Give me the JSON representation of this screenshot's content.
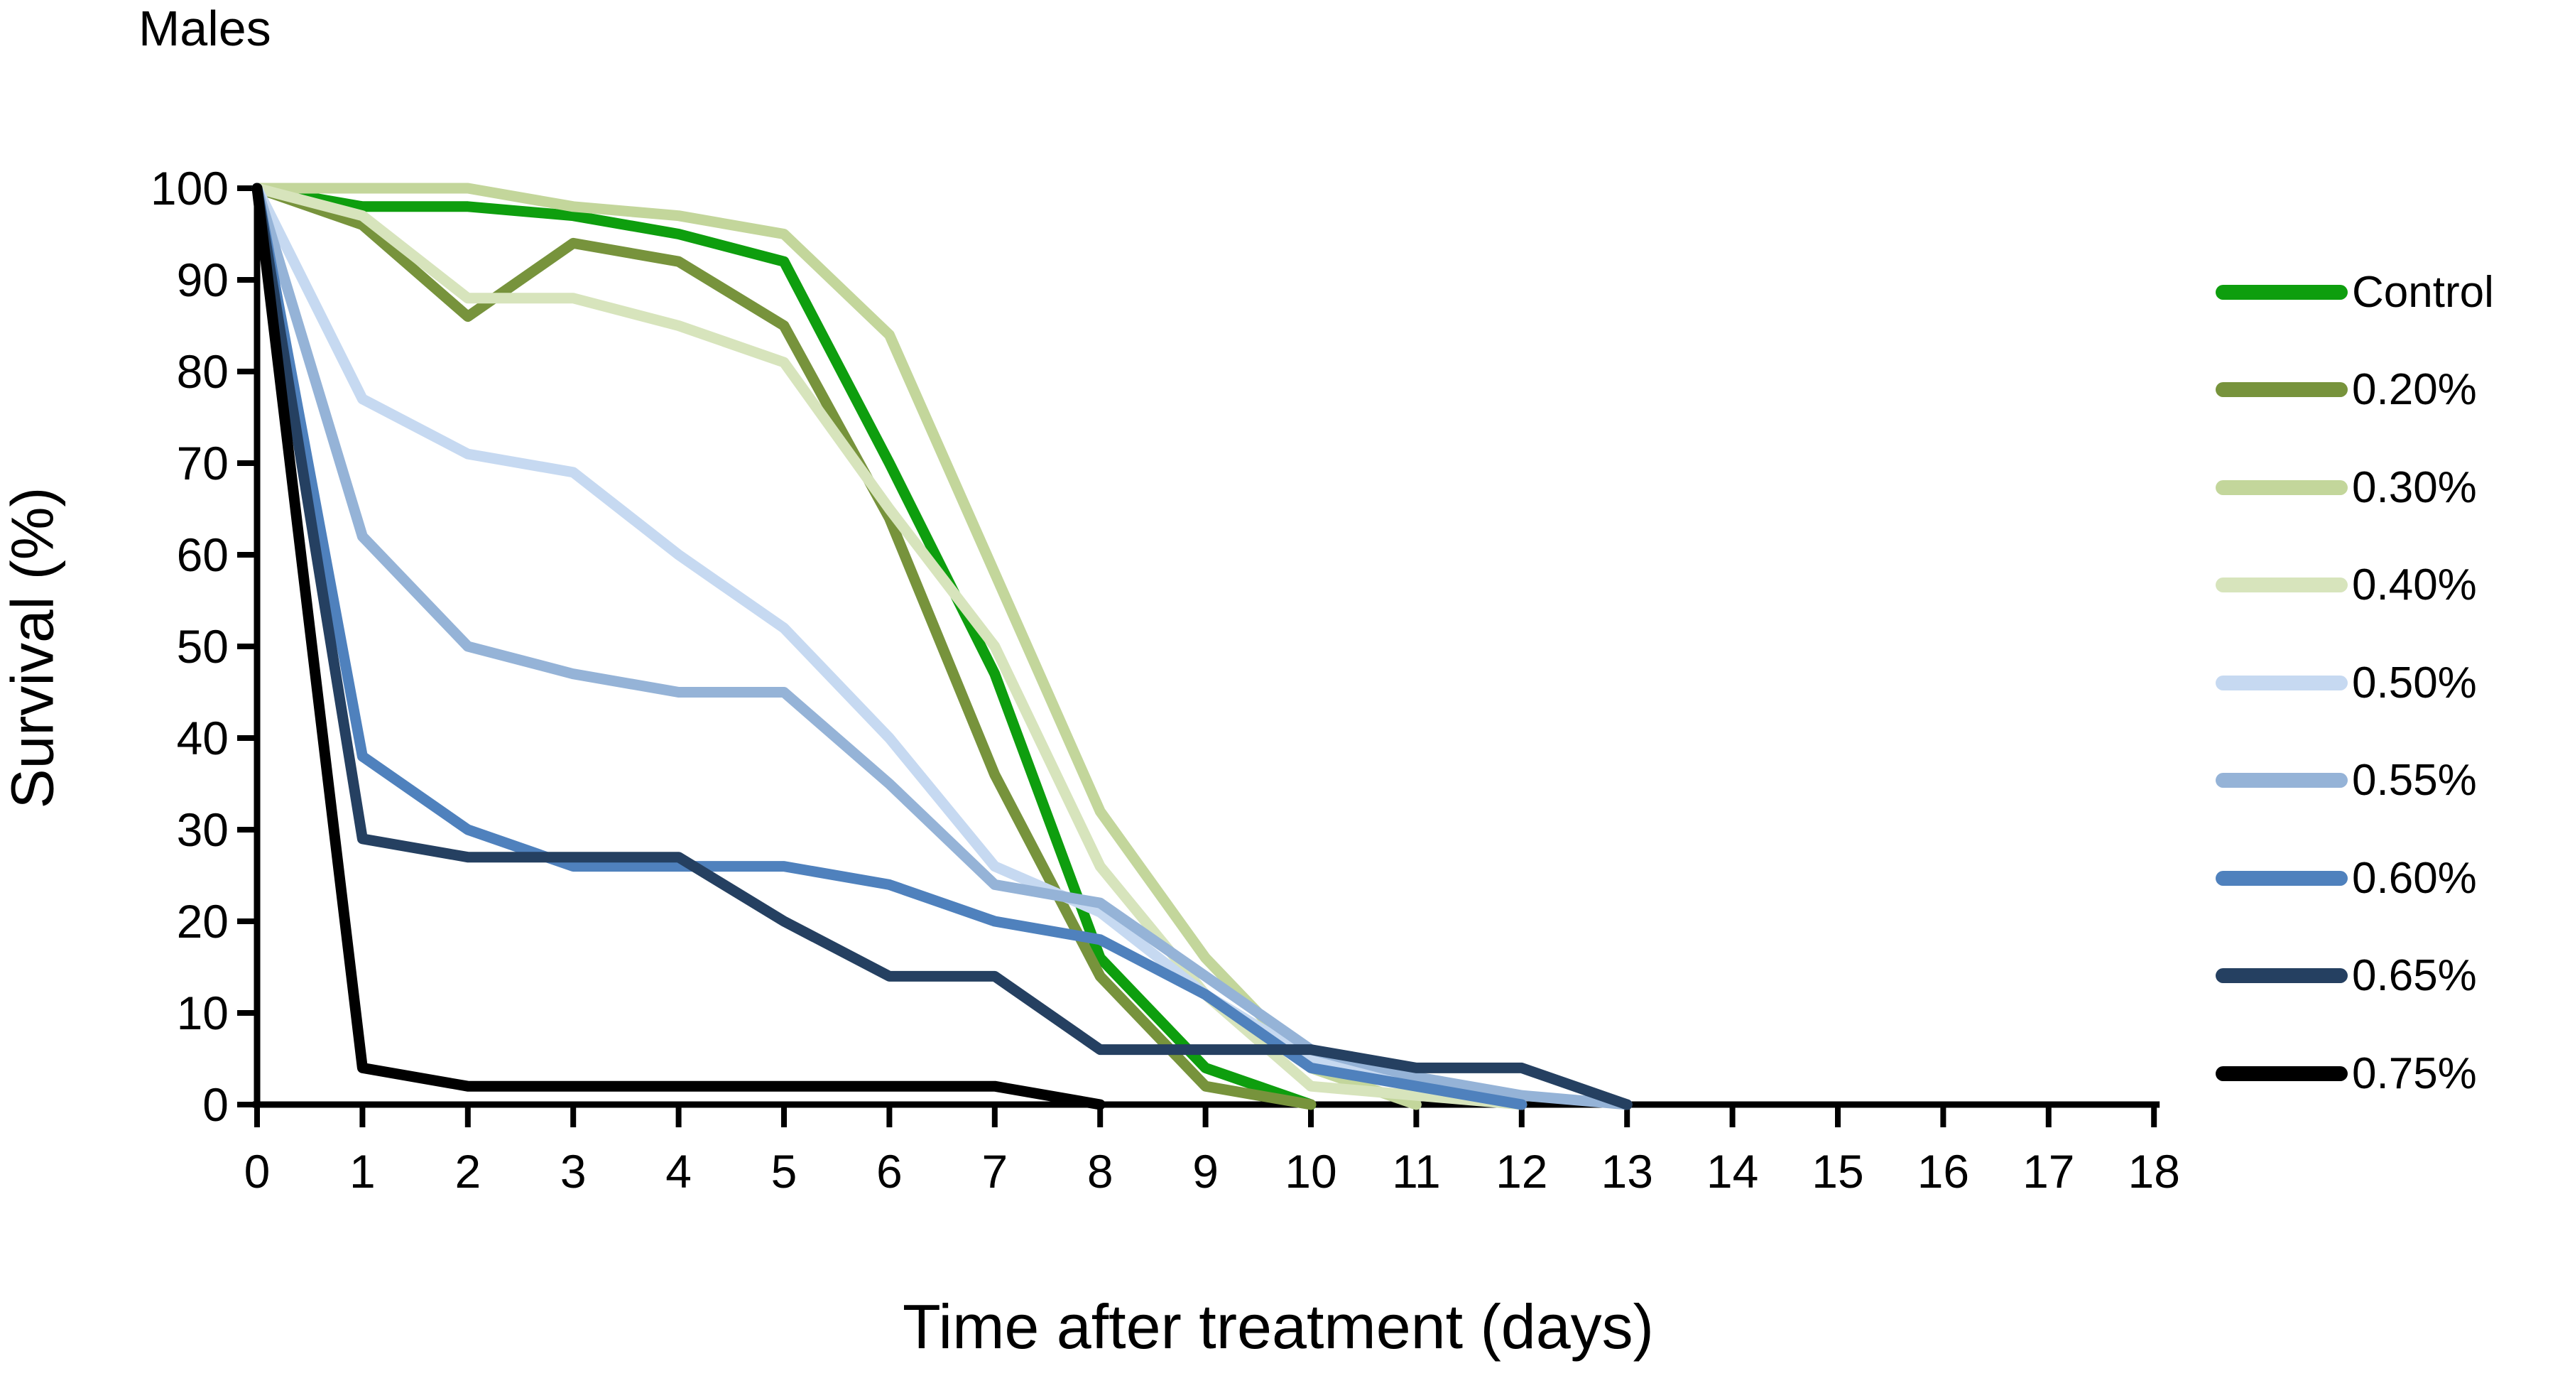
{
  "chart_data": {
    "type": "line",
    "title": "Males",
    "xlabel": "Time after treatment (days)",
    "ylabel": "Survival (%)",
    "xlim": [
      0,
      18
    ],
    "ylim": [
      0,
      100
    ],
    "xticks": [
      0,
      1,
      2,
      3,
      4,
      5,
      6,
      7,
      8,
      9,
      10,
      11,
      12,
      13,
      14,
      15,
      16,
      17,
      18
    ],
    "yticks": [
      0,
      10,
      20,
      30,
      40,
      50,
      60,
      70,
      80,
      90,
      100
    ],
    "grid": false,
    "legend_position": "right",
    "axis_color": "#000000",
    "background_color": "#ffffff",
    "series": [
      {
        "name": "Control",
        "color": "#0E9E0E",
        "x": [
          0,
          1,
          2,
          3,
          4,
          5,
          6,
          7,
          8,
          9,
          10
        ],
        "values": [
          100,
          98,
          98,
          97,
          95,
          92,
          70,
          47,
          16,
          4,
          0
        ]
      },
      {
        "name": "0.20%",
        "color": "#77933C",
        "x": [
          0,
          1,
          2,
          3,
          4,
          5,
          6,
          7,
          8,
          9,
          10
        ],
        "values": [
          100,
          96,
          86,
          94,
          92,
          85,
          64,
          36,
          14,
          2,
          0
        ]
      },
      {
        "name": "0.30%",
        "color": "#C3D69B",
        "x": [
          0,
          1,
          2,
          3,
          4,
          5,
          6,
          7,
          8,
          9,
          10,
          11
        ],
        "values": [
          100,
          100,
          100,
          98,
          97,
          95,
          84,
          58,
          32,
          16,
          4,
          0
        ]
      },
      {
        "name": "0.40%",
        "color": "#D7E4BC",
        "x": [
          0,
          1,
          2,
          3,
          4,
          5,
          6,
          7,
          8,
          9,
          10,
          11,
          12
        ],
        "values": [
          100,
          97,
          88,
          88,
          85,
          81,
          65,
          50,
          26,
          12,
          2,
          1,
          0
        ]
      },
      {
        "name": "0.50%",
        "color": "#C6D9F1",
        "x": [
          0,
          1,
          2,
          3,
          4,
          5,
          6,
          7,
          8,
          9,
          10,
          11,
          12
        ],
        "values": [
          100,
          77,
          71,
          69,
          60,
          52,
          40,
          26,
          21,
          12,
          5,
          2,
          0
        ]
      },
      {
        "name": "0.55%",
        "color": "#95B3D7",
        "x": [
          0,
          1,
          2,
          3,
          4,
          5,
          6,
          7,
          8,
          9,
          10,
          11,
          12,
          13
        ],
        "values": [
          100,
          62,
          50,
          47,
          45,
          45,
          35,
          24,
          22,
          14,
          6,
          3,
          1,
          0
        ]
      },
      {
        "name": "0.60%",
        "color": "#4F81BD",
        "x": [
          0,
          1,
          2,
          3,
          4,
          5,
          6,
          7,
          8,
          9,
          10,
          11,
          12
        ],
        "values": [
          100,
          38,
          30,
          26,
          26,
          26,
          24,
          20,
          18,
          12,
          4,
          2,
          0
        ]
      },
      {
        "name": "0.65%",
        "color": "#254061",
        "x": [
          0,
          1,
          2,
          3,
          4,
          5,
          6,
          7,
          8,
          9,
          10,
          11,
          12,
          13
        ],
        "values": [
          100,
          29,
          27,
          27,
          27,
          20,
          14,
          14,
          6,
          6,
          6,
          4,
          4,
          0
        ]
      },
      {
        "name": "0.75%",
        "color": "#000000",
        "x": [
          0,
          1,
          2,
          3,
          4,
          5,
          6,
          7,
          8
        ],
        "values": [
          100,
          4,
          2,
          2,
          2,
          2,
          2,
          2,
          0
        ]
      }
    ]
  }
}
